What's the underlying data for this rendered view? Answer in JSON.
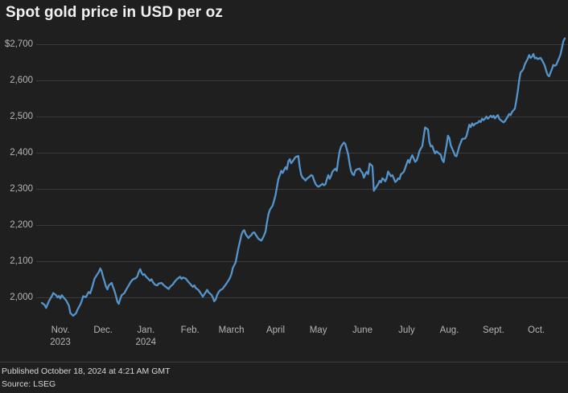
{
  "title": "Spot gold price in USD per oz",
  "footer": {
    "published": "Published October 18, 2024 at 4:21 AM GMT",
    "source": "Source: LSEG"
  },
  "colors": {
    "background": "#1f1f1f",
    "line": "#5594ca",
    "grid": "#3b3b3b",
    "title_text": "#f2f2f2",
    "axis_text": "#b5b5b5",
    "footer_text": "#d8d8d8",
    "separator": "#3c3c3c"
  },
  "chart_data": {
    "type": "line",
    "title": "Spot gold price in USD per oz",
    "series_name": "Spot gold price (USD per oz)",
    "xlabel": "",
    "ylabel": "",
    "legend": "none",
    "grid": "horizontal",
    "start_date": "2023-10-18",
    "end_date": "2024-10-18",
    "x_unit": "days_since_start_date",
    "day_span": 367,
    "ylim_gridlines": [
      2000,
      2700
    ],
    "y_ticks": [
      {
        "label": "$2,700",
        "value": 2700
      },
      {
        "label": "2,600",
        "value": 2600
      },
      {
        "label": "2,500",
        "value": 2500
      },
      {
        "label": "2,400",
        "value": 2400
      },
      {
        "label": "2,300",
        "value": 2300
      },
      {
        "label": "2,200",
        "value": 2200
      },
      {
        "label": "2,100",
        "value": 2100
      },
      {
        "label": "2,000",
        "value": 2000
      }
    ],
    "x_ticks": [
      {
        "label": "Nov.",
        "sub": "2023",
        "day": 13
      },
      {
        "label": "Dec.",
        "sub": "",
        "day": 43
      },
      {
        "label": "Jan.",
        "sub": "2024",
        "day": 73
      },
      {
        "label": "Feb.",
        "sub": "",
        "day": 104
      },
      {
        "label": "March",
        "sub": "",
        "day": 133
      },
      {
        "label": "April",
        "sub": "",
        "day": 164
      },
      {
        "label": "May",
        "sub": "",
        "day": 194
      },
      {
        "label": "June",
        "sub": "",
        "day": 225
      },
      {
        "label": "July",
        "sub": "",
        "day": 256
      },
      {
        "label": "Aug.",
        "sub": "",
        "day": 286
      },
      {
        "label": "Sept.",
        "sub": "",
        "day": 317
      },
      {
        "label": "Oct.",
        "sub": "",
        "day": 347
      }
    ],
    "points": [
      [
        0,
        1985
      ],
      [
        2,
        1979
      ],
      [
        3,
        1971
      ],
      [
        5,
        1990
      ],
      [
        7,
        2003
      ],
      [
        8,
        2012
      ],
      [
        10,
        2006
      ],
      [
        11,
        2000
      ],
      [
        12,
        2004
      ],
      [
        13,
        1997
      ],
      [
        14,
        2006
      ],
      [
        15,
        2001
      ],
      [
        17,
        1992
      ],
      [
        19,
        1977
      ],
      [
        20,
        1957
      ],
      [
        22,
        1949
      ],
      [
        24,
        1956
      ],
      [
        25,
        1966
      ],
      [
        27,
        1980
      ],
      [
        28,
        1990
      ],
      [
        29,
        2003
      ],
      [
        31,
        2001
      ],
      [
        32,
        2009
      ],
      [
        33,
        2015
      ],
      [
        34,
        2011
      ],
      [
        35,
        2024
      ],
      [
        36,
        2038
      ],
      [
        37,
        2052
      ],
      [
        38,
        2058
      ],
      [
        40,
        2070
      ],
      [
        41,
        2080
      ],
      [
        42,
        2072
      ],
      [
        43,
        2056
      ],
      [
        44,
        2044
      ],
      [
        45,
        2030
      ],
      [
        46,
        2022
      ],
      [
        47,
        2033
      ],
      [
        49,
        2040
      ],
      [
        50,
        2028
      ],
      [
        51,
        2018
      ],
      [
        52,
        2004
      ],
      [
        53,
        1988
      ],
      [
        54,
        1982
      ],
      [
        55,
        1995
      ],
      [
        56,
        2006
      ],
      [
        58,
        2012
      ],
      [
        59,
        2020
      ],
      [
        60,
        2027
      ],
      [
        61,
        2033
      ],
      [
        62,
        2040
      ],
      [
        63,
        2046
      ],
      [
        64,
        2050
      ],
      [
        66,
        2053
      ],
      [
        67,
        2058
      ],
      [
        68,
        2070
      ],
      [
        69,
        2078
      ],
      [
        70,
        2068
      ],
      [
        71,
        2062
      ],
      [
        72,
        2064
      ],
      [
        73,
        2058
      ],
      [
        75,
        2050
      ],
      [
        76,
        2046
      ],
      [
        77,
        2050
      ],
      [
        78,
        2042
      ],
      [
        79,
        2037
      ],
      [
        80,
        2034
      ],
      [
        81,
        2033
      ],
      [
        82,
        2038
      ],
      [
        84,
        2040
      ],
      [
        85,
        2036
      ],
      [
        86,
        2032
      ],
      [
        87,
        2029
      ],
      [
        88,
        2026
      ],
      [
        89,
        2023
      ],
      [
        90,
        2029
      ],
      [
        92,
        2036
      ],
      [
        93,
        2042
      ],
      [
        94,
        2047
      ],
      [
        95,
        2051
      ],
      [
        96,
        2054
      ],
      [
        97,
        2057
      ],
      [
        98,
        2051
      ],
      [
        99,
        2055
      ],
      [
        101,
        2052
      ],
      [
        102,
        2047
      ],
      [
        103,
        2042
      ],
      [
        104,
        2038
      ],
      [
        105,
        2033
      ],
      [
        106,
        2029
      ],
      [
        107,
        2033
      ],
      [
        108,
        2026
      ],
      [
        110,
        2020
      ],
      [
        111,
        2014
      ],
      [
        112,
        2008
      ],
      [
        113,
        2002
      ],
      [
        114,
        2008
      ],
      [
        115,
        2014
      ],
      [
        116,
        2021
      ],
      [
        117,
        2014
      ],
      [
        119,
        2007
      ],
      [
        120,
        2000
      ],
      [
        121,
        1989
      ],
      [
        122,
        1994
      ],
      [
        123,
        2006
      ],
      [
        124,
        2014
      ],
      [
        125,
        2019
      ],
      [
        127,
        2024
      ],
      [
        128,
        2030
      ],
      [
        129,
        2035
      ],
      [
        130,
        2041
      ],
      [
        131,
        2047
      ],
      [
        132,
        2054
      ],
      [
        133,
        2064
      ],
      [
        134,
        2081
      ],
      [
        136,
        2097
      ],
      [
        137,
        2117
      ],
      [
        138,
        2137
      ],
      [
        139,
        2154
      ],
      [
        140,
        2172
      ],
      [
        141,
        2182
      ],
      [
        142,
        2186
      ],
      [
        143,
        2175
      ],
      [
        145,
        2164
      ],
      [
        146,
        2169
      ],
      [
        147,
        2172
      ],
      [
        148,
        2178
      ],
      [
        149,
        2180
      ],
      [
        150,
        2174
      ],
      [
        151,
        2168
      ],
      [
        152,
        2162
      ],
      [
        154,
        2157
      ],
      [
        155,
        2163
      ],
      [
        156,
        2172
      ],
      [
        157,
        2182
      ],
      [
        158,
        2207
      ],
      [
        159,
        2229
      ],
      [
        160,
        2242
      ],
      [
        162,
        2254
      ],
      [
        163,
        2268
      ],
      [
        164,
        2283
      ],
      [
        165,
        2305
      ],
      [
        166,
        2327
      ],
      [
        167,
        2338
      ],
      [
        168,
        2350
      ],
      [
        169,
        2344
      ],
      [
        171,
        2360
      ],
      [
        172,
        2354
      ],
      [
        173,
        2376
      ],
      [
        174,
        2382
      ],
      [
        175,
        2371
      ],
      [
        176,
        2376
      ],
      [
        177,
        2382
      ],
      [
        178,
        2388
      ],
      [
        180,
        2391
      ],
      [
        181,
        2360
      ],
      [
        182,
        2339
      ],
      [
        183,
        2331
      ],
      [
        184,
        2328
      ],
      [
        185,
        2323
      ],
      [
        186,
        2328
      ],
      [
        188,
        2334
      ],
      [
        189,
        2338
      ],
      [
        190,
        2336
      ],
      [
        191,
        2324
      ],
      [
        192,
        2314
      ],
      [
        193,
        2309
      ],
      [
        194,
        2306
      ],
      [
        195,
        2308
      ],
      [
        197,
        2314
      ],
      [
        198,
        2310
      ],
      [
        199,
        2313
      ],
      [
        200,
        2326
      ],
      [
        201,
        2338
      ],
      [
        202,
        2328
      ],
      [
        203,
        2336
      ],
      [
        204,
        2348
      ],
      [
        206,
        2356
      ],
      [
        207,
        2350
      ],
      [
        208,
        2380
      ],
      [
        209,
        2404
      ],
      [
        210,
        2417
      ],
      [
        211,
        2423
      ],
      [
        212,
        2428
      ],
      [
        213,
        2424
      ],
      [
        215,
        2395
      ],
      [
        216,
        2369
      ],
      [
        217,
        2350
      ],
      [
        218,
        2341
      ],
      [
        219,
        2338
      ],
      [
        220,
        2350
      ],
      [
        221,
        2354
      ],
      [
        223,
        2356
      ],
      [
        224,
        2349
      ],
      [
        225,
        2344
      ],
      [
        226,
        2331
      ],
      [
        227,
        2340
      ],
      [
        228,
        2347
      ],
      [
        229,
        2341
      ],
      [
        230,
        2370
      ],
      [
        232,
        2363
      ],
      [
        233,
        2295
      ],
      [
        234,
        2301
      ],
      [
        236,
        2313
      ],
      [
        237,
        2322
      ],
      [
        238,
        2318
      ],
      [
        239,
        2329
      ],
      [
        240,
        2326
      ],
      [
        241,
        2321
      ],
      [
        242,
        2329
      ],
      [
        243,
        2348
      ],
      [
        245,
        2335
      ],
      [
        246,
        2338
      ],
      [
        247,
        2329
      ],
      [
        248,
        2319
      ],
      [
        249,
        2322
      ],
      [
        250,
        2329
      ],
      [
        251,
        2327
      ],
      [
        252,
        2340
      ],
      [
        254,
        2347
      ],
      [
        255,
        2357
      ],
      [
        256,
        2369
      ],
      [
        257,
        2380
      ],
      [
        258,
        2372
      ],
      [
        259,
        2385
      ],
      [
        260,
        2393
      ],
      [
        262,
        2375
      ],
      [
        263,
        2378
      ],
      [
        264,
        2390
      ],
      [
        265,
        2404
      ],
      [
        266,
        2412
      ],
      [
        267,
        2418
      ],
      [
        268,
        2446
      ],
      [
        269,
        2470
      ],
      [
        271,
        2464
      ],
      [
        272,
        2430
      ],
      [
        273,
        2417
      ],
      [
        274,
        2419
      ],
      [
        275,
        2407
      ],
      [
        276,
        2398
      ],
      [
        277,
        2404
      ],
      [
        278,
        2400
      ],
      [
        280,
        2394
      ],
      [
        281,
        2380
      ],
      [
        282,
        2374
      ],
      [
        283,
        2398
      ],
      [
        284,
        2420
      ],
      [
        285,
        2447
      ],
      [
        286,
        2441
      ],
      [
        287,
        2420
      ],
      [
        289,
        2402
      ],
      [
        290,
        2392
      ],
      [
        291,
        2390
      ],
      [
        292,
        2404
      ],
      [
        293,
        2418
      ],
      [
        294,
        2428
      ],
      [
        295,
        2438
      ],
      [
        297,
        2439
      ],
      [
        298,
        2446
      ],
      [
        299,
        2462
      ],
      [
        300,
        2477
      ],
      [
        301,
        2471
      ],
      [
        302,
        2481
      ],
      [
        303,
        2475
      ],
      [
        304,
        2480
      ],
      [
        306,
        2483
      ],
      [
        307,
        2488
      ],
      [
        308,
        2485
      ],
      [
        309,
        2494
      ],
      [
        310,
        2490
      ],
      [
        311,
        2494
      ],
      [
        312,
        2500
      ],
      [
        313,
        2494
      ],
      [
        315,
        2502
      ],
      [
        316,
        2498
      ],
      [
        317,
        2502
      ],
      [
        318,
        2495
      ],
      [
        319,
        2500
      ],
      [
        320,
        2504
      ],
      [
        321,
        2494
      ],
      [
        322,
        2490
      ],
      [
        324,
        2484
      ],
      [
        325,
        2487
      ],
      [
        326,
        2494
      ],
      [
        327,
        2500
      ],
      [
        328,
        2507
      ],
      [
        329,
        2504
      ],
      [
        330,
        2513
      ],
      [
        332,
        2522
      ],
      [
        333,
        2545
      ],
      [
        334,
        2570
      ],
      [
        335,
        2600
      ],
      [
        336,
        2622
      ],
      [
        337,
        2626
      ],
      [
        338,
        2632
      ],
      [
        339,
        2645
      ],
      [
        341,
        2660
      ],
      [
        342,
        2670
      ],
      [
        343,
        2662
      ],
      [
        344,
        2666
      ],
      [
        345,
        2673
      ],
      [
        346,
        2661
      ],
      [
        347,
        2663
      ],
      [
        348,
        2659
      ],
      [
        350,
        2662
      ],
      [
        351,
        2656
      ],
      [
        352,
        2649
      ],
      [
        353,
        2640
      ],
      [
        354,
        2626
      ],
      [
        355,
        2615
      ],
      [
        356,
        2611
      ],
      [
        358,
        2632
      ],
      [
        359,
        2643
      ],
      [
        360,
        2640
      ],
      [
        361,
        2643
      ],
      [
        362,
        2652
      ],
      [
        363,
        2661
      ],
      [
        364,
        2672
      ],
      [
        365,
        2690
      ],
      [
        366,
        2708
      ],
      [
        367,
        2716
      ]
    ]
  }
}
